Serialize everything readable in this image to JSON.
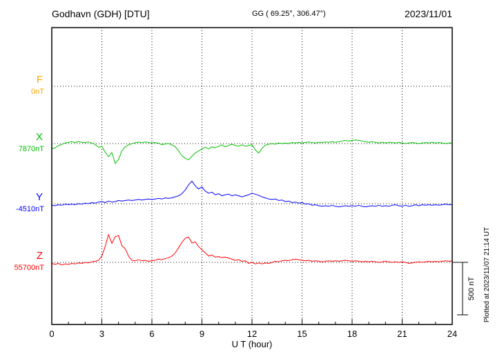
{
  "header": {
    "station": "Godhavn (GDH)  [DTU]",
    "coords": "GG ( 69.25°, 306.47°)",
    "date": "2023/11/01"
  },
  "plotted_note": "Plotted at 2023/11/07 21:14 UT",
  "chart_data": {
    "type": "line",
    "title": "Godhavn (GDH) [DTU] magnetogram 2023/11/01",
    "xlabel": "U T (hour)",
    "x": {
      "start": 0,
      "end": 24,
      "step": 0.2,
      "units": "hour"
    },
    "x_ticks": [
      0,
      3,
      6,
      9,
      12,
      15,
      18,
      21,
      24
    ],
    "grid": "dotted vertical lines every 3 h, dotted horizontal line at each component baseline",
    "legend_position": "left-side component labels",
    "scale_bar": {
      "label": "500 nT",
      "nT": 500
    },
    "series": [
      {
        "name": "F",
        "baseline_label": "0nT",
        "color": "#FFA500",
        "offsets_nT": []
      },
      {
        "name": "X",
        "baseline_label": "7870nT",
        "color": "#00C000",
        "offsets_nT": [
          -50,
          -40,
          -20,
          -8,
          5,
          12,
          18,
          10,
          20,
          12,
          8,
          15,
          5,
          -8,
          -35,
          -25,
          -80,
          -125,
          -85,
          -190,
          -150,
          -70,
          -30,
          -12,
          0,
          8,
          14,
          8,
          15,
          10,
          6,
          10,
          2,
          -10,
          -4,
          2,
          -12,
          -30,
          -70,
          -115,
          -140,
          -155,
          -120,
          -90,
          -70,
          -50,
          -35,
          -50,
          -30,
          -40,
          -25,
          -12,
          -30,
          -18,
          -6,
          -18,
          -25,
          -12,
          -25,
          -18,
          -12,
          -60,
          -90,
          -45,
          -15,
          -6,
          0,
          -6,
          6,
          0,
          6,
          0,
          10,
          6,
          12,
          6,
          10,
          15,
          10,
          6,
          12,
          10,
          15,
          12,
          18,
          12,
          18,
          25,
          30,
          25,
          30,
          35,
          30,
          25,
          18,
          12,
          18,
          12,
          6,
          12,
          6,
          12,
          10,
          6,
          12,
          6,
          0,
          6,
          10,
          6,
          0,
          6,
          10,
          6,
          12,
          6,
          10,
          6,
          0,
          6,
          6
        ]
      },
      {
        "name": "Y",
        "baseline_label": "-4510nT",
        "color": "#0000FF",
        "offsets_nT": [
          -15,
          -20,
          -10,
          -15,
          -5,
          -10,
          -5,
          -10,
          0,
          -5,
          5,
          0,
          10,
          5,
          15,
          20,
          10,
          25,
          15,
          20,
          30,
          25,
          30,
          35,
          30,
          35,
          40,
          35,
          40,
          45,
          40,
          45,
          50,
          45,
          55,
          50,
          55,
          65,
          75,
          95,
          130,
          180,
          215,
          170,
          140,
          160,
          120,
          100,
          110,
          85,
          95,
          75,
          85,
          90,
          75,
          85,
          75,
          65,
          75,
          85,
          100,
          90,
          80,
          65,
          55,
          45,
          40,
          45,
          30,
          35,
          20,
          25,
          10,
          15,
          5,
          10,
          -5,
          0,
          -15,
          -10,
          -20,
          -25,
          -20,
          -25,
          -15,
          -25,
          -30,
          -25,
          -20,
          -25,
          -20,
          -25,
          -15,
          -25,
          -30,
          -25,
          -20,
          -25,
          -15,
          -25,
          -20,
          -25,
          -15,
          -10,
          -20,
          -25,
          -15,
          -25,
          -20,
          -10,
          -20,
          -10,
          -15,
          -10,
          -15,
          -10,
          -15,
          -10,
          -5,
          -10,
          -8
        ]
      },
      {
        "name": "Z",
        "baseline_label": "55700nT",
        "color": "#FF0000",
        "offsets_nT": [
          -10,
          -20,
          -10,
          -25,
          -15,
          -20,
          -10,
          -15,
          -5,
          -10,
          0,
          -5,
          5,
          10,
          20,
          60,
          150,
          265,
          180,
          245,
          255,
          160,
          130,
          60,
          20,
          15,
          25,
          15,
          20,
          10,
          15,
          20,
          30,
          25,
          35,
          45,
          60,
          90,
          140,
          190,
          230,
          240,
          185,
          195,
          150,
          120,
          90,
          60,
          70,
          50,
          55,
          45,
          50,
          40,
          30,
          20,
          25,
          10,
          15,
          -10,
          0,
          -15,
          -5,
          -15,
          -5,
          -10,
          0,
          10,
          5,
          15,
          20,
          15,
          25,
          30,
          25,
          20,
          15,
          20,
          10,
          15,
          10,
          5,
          10,
          15,
          10,
          15,
          10,
          15,
          20,
          15,
          10,
          15,
          10,
          5,
          10,
          5,
          10,
          5,
          0,
          5,
          10,
          5,
          0,
          5,
          0,
          5,
          0,
          -10,
          -5,
          0,
          5,
          0,
          5,
          10,
          5,
          10,
          5,
          10,
          15,
          10,
          15
        ]
      }
    ]
  }
}
